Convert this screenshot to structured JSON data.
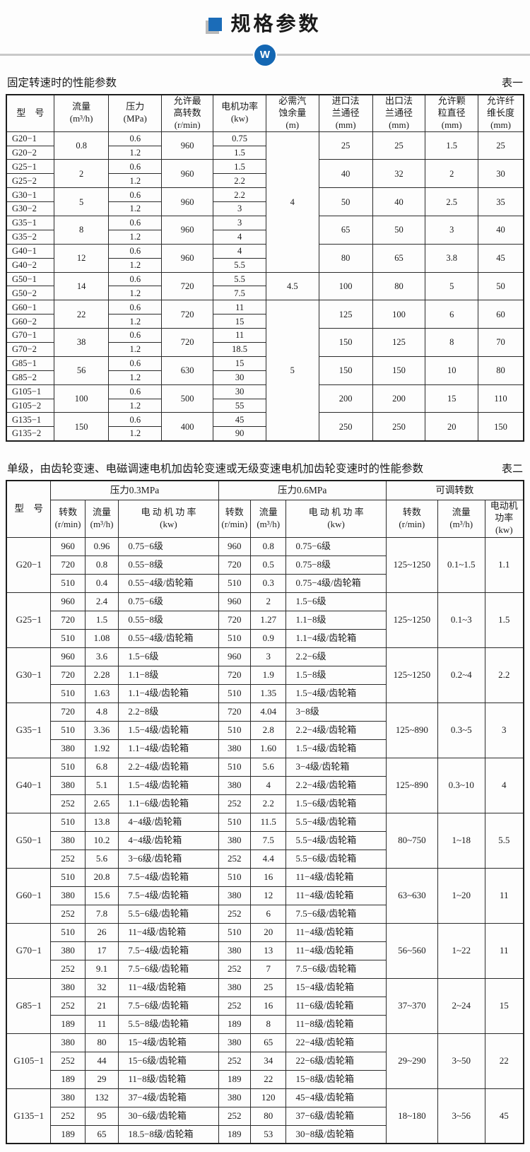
{
  "page": {
    "title": "规格参数",
    "logo_letter": "W",
    "accent_blue": "#1b6cb8",
    "badge_blue": "#1467b3",
    "divider_gray": "#c9c9c9"
  },
  "table1": {
    "caption": "固定转速时的性能参数",
    "tag": "表一",
    "headers": [
      "型　号",
      "流量\n(m³/h)",
      "压力\n(MPa)",
      "允许最\n高转数\n(r/min)",
      "电机功率\n(kw)",
      "必需汽\n蚀余量\n(m)",
      "进口法\n兰通径\n(mm)",
      "出口法\n兰通径\n(mm)",
      "允许颗\n粒直径\n(mm)",
      "允许纤\n维长度\n(mm)"
    ],
    "npsh_spans": [
      {
        "value": "4",
        "rows": 10,
        "at_pair": 0
      },
      {
        "value": "4.5",
        "rows": 2,
        "at_pair": 5
      },
      {
        "value": "5",
        "rows": 10,
        "at_pair": 6
      }
    ],
    "pairs": [
      {
        "models": [
          "G20−1",
          "G20−2"
        ],
        "flow": "0.8",
        "pressures": [
          "0.6",
          "1.2"
        ],
        "speed": "960",
        "powers": [
          "0.75",
          "1.5"
        ],
        "inlet": "25",
        "outlet": "25",
        "particle": "1.5",
        "fiber": "25"
      },
      {
        "models": [
          "G25−1",
          "G25−2"
        ],
        "flow": "2",
        "pressures": [
          "0.6",
          "1.2"
        ],
        "speed": "960",
        "powers": [
          "1.5",
          "2.2"
        ],
        "inlet": "40",
        "outlet": "32",
        "particle": "2",
        "fiber": "30"
      },
      {
        "models": [
          "G30−1",
          "G30−2"
        ],
        "flow": "5",
        "pressures": [
          "0.6",
          "1.2"
        ],
        "speed": "960",
        "powers": [
          "2.2",
          "3"
        ],
        "inlet": "50",
        "outlet": "40",
        "particle": "2.5",
        "fiber": "35"
      },
      {
        "models": [
          "G35−1",
          "G35−2"
        ],
        "flow": "8",
        "pressures": [
          "0.6",
          "1.2"
        ],
        "speed": "960",
        "powers": [
          "3",
          "4"
        ],
        "inlet": "65",
        "outlet": "50",
        "particle": "3",
        "fiber": "40"
      },
      {
        "models": [
          "G40−1",
          "G40−2"
        ],
        "flow": "12",
        "pressures": [
          "0.6",
          "1.2"
        ],
        "speed": "960",
        "powers": [
          "4",
          "5.5"
        ],
        "inlet": "80",
        "outlet": "65",
        "particle": "3.8",
        "fiber": "45"
      },
      {
        "models": [
          "G50−1",
          "G50−2"
        ],
        "flow": "14",
        "pressures": [
          "0.6",
          "1.2"
        ],
        "speed": "720",
        "powers": [
          "5.5",
          "7.5"
        ],
        "inlet": "100",
        "outlet": "80",
        "particle": "5",
        "fiber": "50"
      },
      {
        "models": [
          "G60−1",
          "G60−2"
        ],
        "flow": "22",
        "pressures": [
          "0.6",
          "1.2"
        ],
        "speed": "720",
        "powers": [
          "11",
          "15"
        ],
        "inlet": "125",
        "outlet": "100",
        "particle": "6",
        "fiber": "60"
      },
      {
        "models": [
          "G70−1",
          "G70−2"
        ],
        "flow": "38",
        "pressures": [
          "0.6",
          "1.2"
        ],
        "speed": "720",
        "powers": [
          "11",
          "18.5"
        ],
        "inlet": "150",
        "outlet": "125",
        "particle": "8",
        "fiber": "70"
      },
      {
        "models": [
          "G85−1",
          "G85−2"
        ],
        "flow": "56",
        "pressures": [
          "0.6",
          "1.2"
        ],
        "speed": "630",
        "powers": [
          "15",
          "30"
        ],
        "inlet": "150",
        "outlet": "150",
        "particle": "10",
        "fiber": "80"
      },
      {
        "models": [
          "G105−1",
          "G105−2"
        ],
        "flow": "100",
        "pressures": [
          "0.6",
          "1.2"
        ],
        "speed": "500",
        "powers": [
          "30",
          "55"
        ],
        "inlet": "200",
        "outlet": "200",
        "particle": "15",
        "fiber": "110"
      },
      {
        "models": [
          "G135−1",
          "G135−2"
        ],
        "flow": "150",
        "pressures": [
          "0.6",
          "1.2"
        ],
        "speed": "400",
        "powers": [
          "45",
          "90"
        ],
        "inlet": "250",
        "outlet": "250",
        "particle": "20",
        "fiber": "150"
      }
    ]
  },
  "table2": {
    "caption": "单级，由齿轮变速、电磁调速电机加齿轮变速或无级变速电机加齿轮变速时的性能参数",
    "tag": "表二",
    "model_header": "型　号",
    "groups": [
      {
        "label": "压力0.3MPa",
        "cols": [
          "转数\n(r/min)",
          "流量\n(m³/h)",
          "电 动 机 功 率\n(kw)"
        ]
      },
      {
        "label": "压力0.6MPa",
        "cols": [
          "转数\n(r/min)",
          "流量\n(m³/h)",
          "电 动 机 功 率\n(kw)"
        ]
      },
      {
        "label": "可调转数",
        "cols": [
          "转数\n(r/min)",
          "流量\n(m³/h)",
          "电动机功率\n(kw)"
        ]
      }
    ],
    "rows_groups": [
      {
        "model": "G20−1",
        "p03": [
          [
            "960",
            "0.96",
            "0.75−6级"
          ],
          [
            "720",
            "0.8",
            "0.55−8级"
          ],
          [
            "510",
            "0.4",
            "0.55−4级/齿轮箱"
          ]
        ],
        "p06": [
          [
            "960",
            "0.8",
            "0.75−6级"
          ],
          [
            "720",
            "0.5",
            "0.75−8级"
          ],
          [
            "510",
            "0.3",
            "0.75−4级/齿轮箱"
          ]
        ],
        "adj": [
          "125~1250",
          "0.1~1.5",
          "1.1"
        ]
      },
      {
        "model": "G25−1",
        "p03": [
          [
            "960",
            "2.4",
            "0.75−6级"
          ],
          [
            "720",
            "1.5",
            "0.55−8级"
          ],
          [
            "510",
            "1.08",
            "0.55−4级/齿轮箱"
          ]
        ],
        "p06": [
          [
            "960",
            "2",
            "1.5−6级"
          ],
          [
            "720",
            "1.27",
            "1.1−8级"
          ],
          [
            "510",
            "0.9",
            "1.1−4级/齿轮箱"
          ]
        ],
        "adj": [
          "125~1250",
          "0.1~3",
          "1.5"
        ]
      },
      {
        "model": "G30−1",
        "p03": [
          [
            "960",
            "3.6",
            "1.5−6级"
          ],
          [
            "720",
            "2.28",
            "1.1−8级"
          ],
          [
            "510",
            "1.63",
            "1.1−4级/齿轮箱"
          ]
        ],
        "p06": [
          [
            "960",
            "3",
            "2.2−6级"
          ],
          [
            "720",
            "1.9",
            "1.5−8级"
          ],
          [
            "510",
            "1.35",
            "1.5−4级/齿轮箱"
          ]
        ],
        "adj": [
          "125~1250",
          "0.2~4",
          "2.2"
        ]
      },
      {
        "model": "G35−1",
        "p03": [
          [
            "720",
            "4.8",
            "2.2−8级"
          ],
          [
            "510",
            "3.36",
            "1.5−4级/齿轮箱"
          ],
          [
            "380",
            "1.92",
            "1.1−4级/齿轮箱"
          ]
        ],
        "p06": [
          [
            "720",
            "4.04",
            "3−8级"
          ],
          [
            "510",
            "2.8",
            "2.2−4级/齿轮箱"
          ],
          [
            "380",
            "1.60",
            "1.5−4级/齿轮箱"
          ]
        ],
        "adj": [
          "125~890",
          "0.3~5",
          "3"
        ]
      },
      {
        "model": "G40−1",
        "p03": [
          [
            "510",
            "6.8",
            "2.2−4级/齿轮箱"
          ],
          [
            "380",
            "5.1",
            "1.5−4级/齿轮箱"
          ],
          [
            "252",
            "2.65",
            "1.1−6级/齿轮箱"
          ]
        ],
        "p06": [
          [
            "510",
            "5.6",
            "3−4级/齿轮箱"
          ],
          [
            "380",
            "4",
            "2.2−4级/齿轮箱"
          ],
          [
            "252",
            "2.2",
            "1.5−6级/齿轮箱"
          ]
        ],
        "adj": [
          "125~890",
          "0.3~10",
          "4"
        ]
      },
      {
        "model": "G50−1",
        "p03": [
          [
            "510",
            "13.8",
            "4−4级/齿轮箱"
          ],
          [
            "380",
            "10.2",
            "4−4级/齿轮箱"
          ],
          [
            "252",
            "5.6",
            "3−6级/齿轮箱"
          ]
        ],
        "p06": [
          [
            "510",
            "11.5",
            "5.5−4级/齿轮箱"
          ],
          [
            "380",
            "7.5",
            "5.5−4级/齿轮箱"
          ],
          [
            "252",
            "4.4",
            "5.5−6级/齿轮箱"
          ]
        ],
        "adj": [
          "80~750",
          "1~18",
          "5.5"
        ]
      },
      {
        "model": "G60−1",
        "p03": [
          [
            "510",
            "20.8",
            "7.5−4级/齿轮箱"
          ],
          [
            "380",
            "15.6",
            "7.5−4级/齿轮箱"
          ],
          [
            "252",
            "7.8",
            "5.5−6级/齿轮箱"
          ]
        ],
        "p06": [
          [
            "510",
            "16",
            "11−4级/齿轮箱"
          ],
          [
            "380",
            "12",
            "11−4级/齿轮箱"
          ],
          [
            "252",
            "6",
            "7.5−6级/齿轮箱"
          ]
        ],
        "adj": [
          "63~630",
          "1~20",
          "11"
        ]
      },
      {
        "model": "G70−1",
        "p03": [
          [
            "510",
            "26",
            "11−4级/齿轮箱"
          ],
          [
            "380",
            "17",
            "7.5−4级/齿轮箱"
          ],
          [
            "252",
            "9.1",
            "7.5−6级/齿轮箱"
          ]
        ],
        "p06": [
          [
            "510",
            "20",
            "11−4级/齿轮箱"
          ],
          [
            "380",
            "13",
            "11−4级/齿轮箱"
          ],
          [
            "252",
            "7",
            "7.5−6级/齿轮箱"
          ]
        ],
        "adj": [
          "56~560",
          "1~22",
          "11"
        ]
      },
      {
        "model": "G85−1",
        "p03": [
          [
            "380",
            "32",
            "11−4级/齿轮箱"
          ],
          [
            "252",
            "21",
            "7.5−6级/齿轮箱"
          ],
          [
            "189",
            "11",
            "5.5−8级/齿轮箱"
          ]
        ],
        "p06": [
          [
            "380",
            "25",
            "15−4级/齿轮箱"
          ],
          [
            "252",
            "16",
            "11−6级/齿轮箱"
          ],
          [
            "189",
            "8",
            "11−8级/齿轮箱"
          ]
        ],
        "adj": [
          "37~370",
          "2~24",
          "15"
        ]
      },
      {
        "model": "G105−1",
        "p03": [
          [
            "380",
            "80",
            "15−4级/齿轮箱"
          ],
          [
            "252",
            "44",
            "15−6级/齿轮箱"
          ],
          [
            "189",
            "29",
            "11−8级/齿轮箱"
          ]
        ],
        "p06": [
          [
            "380",
            "65",
            "22−4级/齿轮箱"
          ],
          [
            "252",
            "34",
            "22−6级/齿轮箱"
          ],
          [
            "189",
            "22",
            "15−8级/齿轮箱"
          ]
        ],
        "adj": [
          "29~290",
          "3~50",
          "22"
        ]
      },
      {
        "model": "G135−1",
        "p03": [
          [
            "380",
            "132",
            "37−4级/齿轮箱"
          ],
          [
            "252",
            "95",
            "30−6级/齿轮箱"
          ],
          [
            "189",
            "65",
            "18.5−8级/齿轮箱"
          ]
        ],
        "p06": [
          [
            "380",
            "120",
            "45−4级/齿轮箱"
          ],
          [
            "252",
            "80",
            "37−6级/齿轮箱"
          ],
          [
            "189",
            "53",
            "30−8级/齿轮箱"
          ]
        ],
        "adj": [
          "18~180",
          "3~56",
          "45"
        ]
      }
    ]
  }
}
